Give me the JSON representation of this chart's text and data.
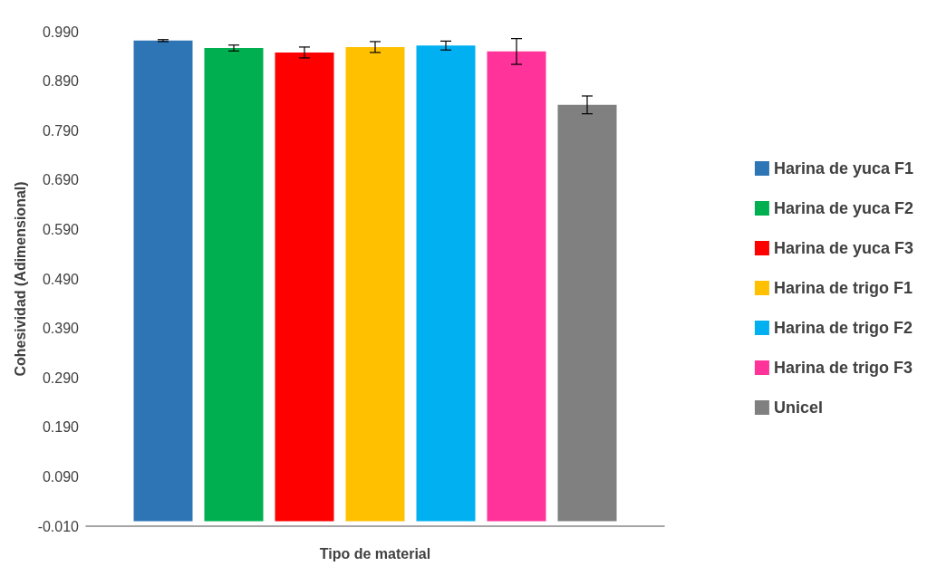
{
  "chart_data": {
    "type": "bar",
    "xlabel": "Tipo de material",
    "ylabel": "Cohesividad (Adimensional)",
    "categories": [
      null
    ],
    "series": [
      {
        "name": "Harina de yuca F1",
        "color": "#2e75b6",
        "values": [
          0.972
        ],
        "errors": [
          0.002
        ]
      },
      {
        "name": "Harina de yuca F2",
        "color": "#00b050",
        "values": [
          0.957
        ],
        "errors": [
          0.006
        ]
      },
      {
        "name": "Harina de yuca F3",
        "color": "#ff0000",
        "values": [
          0.948
        ],
        "errors": [
          0.011
        ]
      },
      {
        "name": "Harina de trigo F1",
        "color": "#ffc000",
        "values": [
          0.959
        ],
        "errors": [
          0.011
        ]
      },
      {
        "name": "Harina de trigo F2",
        "color": "#00b0f0",
        "values": [
          0.962
        ],
        "errors": [
          0.009
        ]
      },
      {
        "name": "Harina de trigo F3",
        "color": "#ff3399",
        "values": [
          0.95
        ],
        "errors": [
          0.026
        ]
      },
      {
        "name": "Unicel",
        "color": "#808080",
        "values": [
          0.842
        ],
        "errors": [
          0.018
        ]
      }
    ],
    "ylim": [
      -0.01,
      0.99
    ],
    "yticks": [
      {
        "value": -0.01,
        "label": "-0.010"
      },
      {
        "value": 0.09,
        "label": "0.090"
      },
      {
        "value": 0.19,
        "label": "0.190"
      },
      {
        "value": 0.29,
        "label": "0.290"
      },
      {
        "value": 0.39,
        "label": "0.390"
      },
      {
        "value": 0.49,
        "label": "0.490"
      },
      {
        "value": 0.59,
        "label": "0.590"
      },
      {
        "value": 0.69,
        "label": "0.690"
      },
      {
        "value": 0.79,
        "label": "0.790"
      },
      {
        "value": 0.89,
        "label": "0.890"
      },
      {
        "value": 0.99,
        "label": "0.990"
      }
    ],
    "grid": false,
    "legend": "right"
  }
}
